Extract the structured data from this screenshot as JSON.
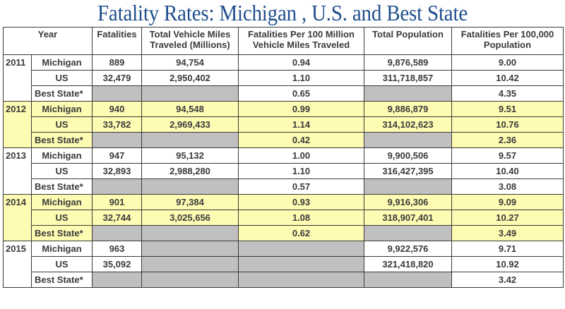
{
  "title": "Fatality Rates: Michigan , U.S. and Best State",
  "colors": {
    "title": "#1f4e8c",
    "highlight_yellow": "#fefbb2",
    "na_gray": "#c0c0c0",
    "text": "#3a3a3a"
  },
  "headers": {
    "year": "Year",
    "fatalities": "Fatalities",
    "vmt_line1": "Total Vehicle Miles",
    "vmt_line2": "Traveled (Millions)",
    "rate_vmt_line1": "Fatalities Per 100 Million",
    "rate_vmt_line2": "Vehicle Miles Traveled",
    "population": "Total Population",
    "rate_pop_line1": "Fatalities Per 100,000",
    "rate_pop_line2": "Population"
  },
  "groups": [
    {
      "year": "2011",
      "highlight": false,
      "rows": [
        {
          "entity": "Michigan",
          "fatalities": "889",
          "vmt": "94,754",
          "rate_vmt": "0.94",
          "population": "9,876,589",
          "rate_pop": "9.00"
        },
        {
          "entity": "US",
          "fatalities": "32,479",
          "vmt": "2,950,402",
          "rate_vmt": "1.10",
          "population": "311,718,857",
          "rate_pop": "10.42"
        },
        {
          "entity": "Best State*",
          "fatalities": "",
          "vmt": "",
          "rate_vmt": "0.65",
          "population": "",
          "rate_pop": "4.35"
        }
      ]
    },
    {
      "year": "2012",
      "highlight": true,
      "rows": [
        {
          "entity": "Michigan",
          "fatalities": "940",
          "vmt": "94,548",
          "rate_vmt": "0.99",
          "population": "9,886,879",
          "rate_pop": "9.51"
        },
        {
          "entity": "US",
          "fatalities": "33,782",
          "vmt": "2,969,433",
          "rate_vmt": "1.14",
          "population": "314,102,623",
          "rate_pop": "10.76"
        },
        {
          "entity": "Best State*",
          "fatalities": "",
          "vmt": "",
          "rate_vmt": "0.42",
          "population": "",
          "rate_pop": "2.36"
        }
      ]
    },
    {
      "year": "2013",
      "highlight": false,
      "rows": [
        {
          "entity": "Michigan",
          "fatalities": "947",
          "vmt": "95,132",
          "rate_vmt": "1.00",
          "population": "9,900,506",
          "rate_pop": "9.57"
        },
        {
          "entity": "US",
          "fatalities": "32,893",
          "vmt": "2,988,280",
          "rate_vmt": "1.10",
          "population": "316,427,395",
          "rate_pop": "10.40"
        },
        {
          "entity": "Best State*",
          "fatalities": "",
          "vmt": "",
          "rate_vmt": "0.57",
          "population": "",
          "rate_pop": "3.08"
        }
      ]
    },
    {
      "year": "2014",
      "highlight": true,
      "rows": [
        {
          "entity": "Michigan",
          "fatalities": "901",
          "vmt": "97,384",
          "rate_vmt": "0.93",
          "population": "9,916,306",
          "rate_pop": "9.09"
        },
        {
          "entity": "US",
          "fatalities": "32,744",
          "vmt": "3,025,656",
          "rate_vmt": "1.08",
          "population": "318,907,401",
          "rate_pop": "10.27"
        },
        {
          "entity": "Best State*",
          "fatalities": "",
          "vmt": "",
          "rate_vmt": "0.62",
          "population": "",
          "rate_pop": "3.49"
        }
      ]
    },
    {
      "year": "2015",
      "highlight": false,
      "rows": [
        {
          "entity": "Michigan",
          "fatalities": "963",
          "vmt": "",
          "rate_vmt": "",
          "population": "9,922,576",
          "rate_pop": "9.71"
        },
        {
          "entity": "US",
          "fatalities": "35,092",
          "vmt": "",
          "rate_vmt": "",
          "population": "321,418,820",
          "rate_pop": "10.92"
        },
        {
          "entity": "Best State*",
          "fatalities": "",
          "vmt": "",
          "rate_vmt": "",
          "population": "",
          "rate_pop": "3.42"
        }
      ]
    }
  ]
}
